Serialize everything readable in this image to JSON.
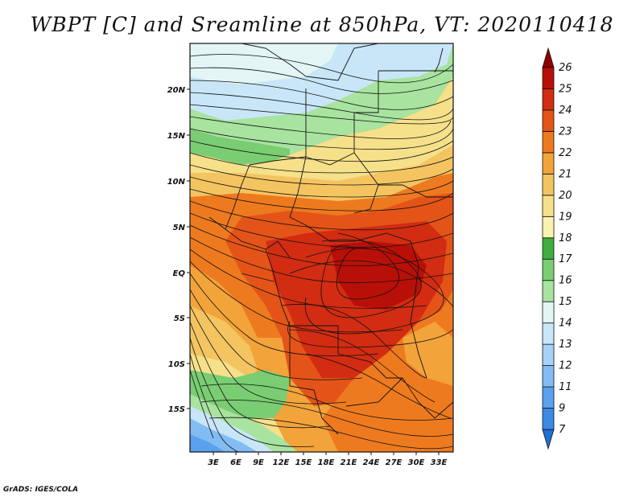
{
  "title": "WBPT [C] and Sreamline at 850hPa, VT: 2020110418",
  "footer": "GrADS: IGES/COLA",
  "lat_labels": [
    "20N",
    "15N",
    "10N",
    "5N",
    "EQ",
    "5S",
    "10S",
    "15S"
  ],
  "lon_labels": [
    "3E",
    "6E",
    "9E",
    "12E",
    "15E",
    "18E",
    "21E",
    "24E",
    "27E",
    "30E",
    "33E"
  ],
  "colorbar": {
    "levels": [
      "7",
      "9",
      "11",
      "12",
      "13",
      "14",
      "15",
      "16",
      "17",
      "18",
      "19",
      "20",
      "21",
      "22",
      "23",
      "24",
      "25",
      "26"
    ],
    "colors": [
      "#1f6fd6",
      "#3a8ae6",
      "#5aa1ee",
      "#82bcf3",
      "#a6d2f7",
      "#c8e6f7",
      "#e3f5f5",
      "#a8e3a0",
      "#7acd72",
      "#3fad3f",
      "#f9f3b0",
      "#f6e08a",
      "#f4c461",
      "#f2a33a",
      "#ee7a1f",
      "#e45418",
      "#d22c12",
      "#b81008",
      "#8f0000"
    ]
  },
  "colors": {
    "background": "#ffffff",
    "streamline": "#111111",
    "border": "#111111"
  }
}
